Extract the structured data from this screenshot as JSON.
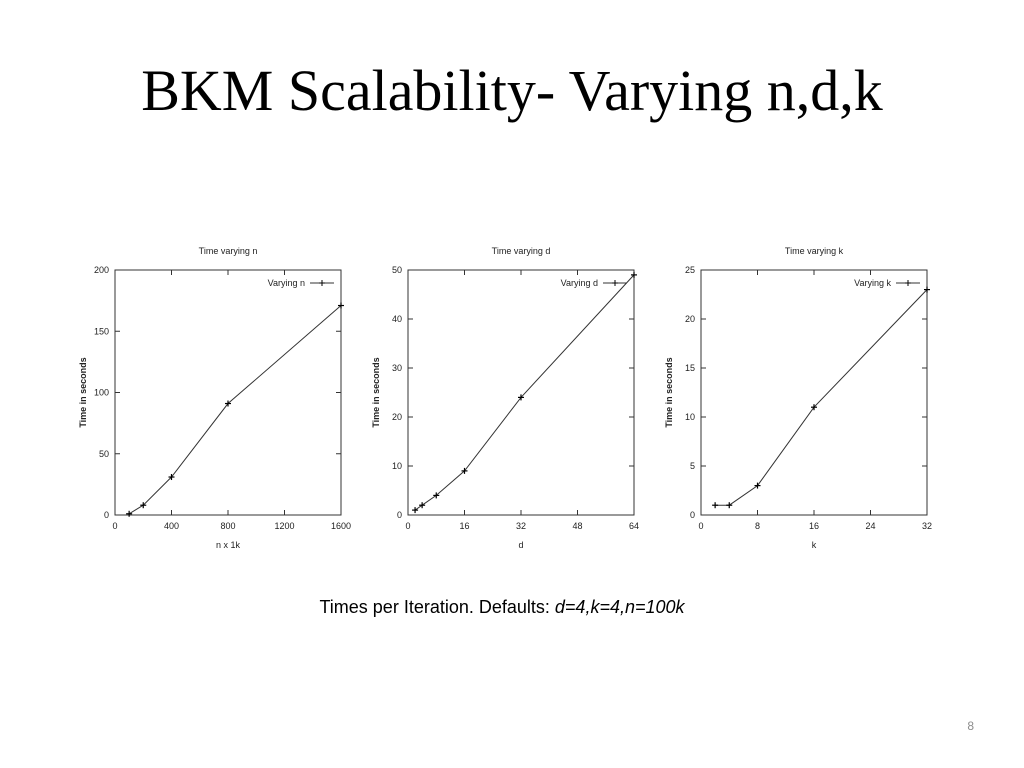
{
  "slide": {
    "title": "BKM Scalability- Varying n,d,k",
    "caption_prefix": "Times per Iteration. Defaults: ",
    "caption_defaults": "d=4,k=4,n=100k",
    "page_number": "8"
  },
  "chart_data": [
    {
      "type": "line",
      "title": "Time varying n",
      "xlabel": "n x 1k",
      "ylabel": "Time in seconds",
      "xlim": [
        0,
        1600
      ],
      "ylim": [
        0,
        200
      ],
      "xticks": [
        0,
        400,
        800,
        1200,
        1600
      ],
      "yticks": [
        0,
        50,
        100,
        150,
        200
      ],
      "grid": false,
      "legend_position": "top-right",
      "series": [
        {
          "name": "Varying n",
          "x": [
            100,
            200,
            400,
            800,
            1600
          ],
          "y": [
            1,
            8,
            31,
            91,
            171
          ]
        }
      ]
    },
    {
      "type": "line",
      "title": "Time varying d",
      "xlabel": "d",
      "ylabel": "Time in seconds",
      "xlim": [
        0,
        64
      ],
      "ylim": [
        0,
        50
      ],
      "xticks": [
        0,
        16,
        32,
        48,
        64
      ],
      "yticks": [
        0,
        10,
        20,
        30,
        40,
        50
      ],
      "grid": false,
      "legend_position": "top-right",
      "series": [
        {
          "name": "Varying d",
          "x": [
            2,
            4,
            8,
            16,
            32,
            64
          ],
          "y": [
            1,
            2,
            4,
            9,
            24,
            49
          ]
        }
      ]
    },
    {
      "type": "line",
      "title": "Time varying k",
      "xlabel": "k",
      "ylabel": "Time in seconds",
      "xlim": [
        0,
        32
      ],
      "ylim": [
        0,
        25
      ],
      "xticks": [
        0,
        8,
        16,
        24,
        32
      ],
      "yticks": [
        0,
        5,
        10,
        15,
        20,
        25
      ],
      "grid": false,
      "legend_position": "top-right",
      "series": [
        {
          "name": "Varying k",
          "x": [
            2,
            4,
            8,
            16,
            32
          ],
          "y": [
            1,
            1,
            3,
            11,
            23
          ]
        }
      ]
    }
  ]
}
